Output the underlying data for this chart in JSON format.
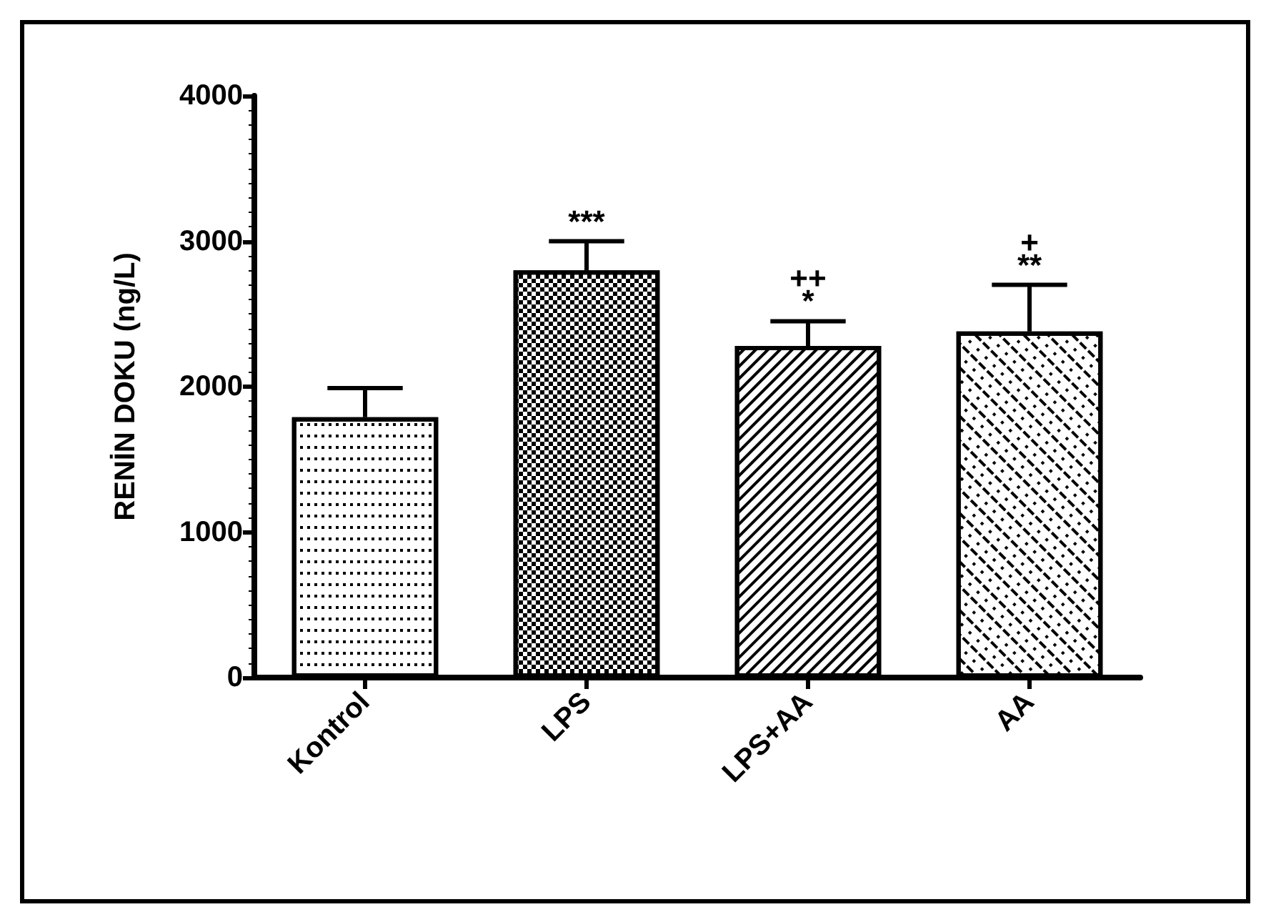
{
  "chart_data": {
    "type": "bar",
    "ylabel": "RENİN DOKU (ng/L)",
    "categories": [
      "Kontrol",
      "LPS",
      "LPS+AA",
      "AA"
    ],
    "values": [
      1790,
      2800,
      2280,
      2380
    ],
    "errors": [
      200,
      200,
      170,
      320
    ],
    "value_labels": [
      null,
      "***",
      "++\n*",
      "+\n**"
    ],
    "color": "#000000",
    "ylim": [
      0,
      4000
    ],
    "yticks": [
      0,
      1000,
      2000,
      3000,
      4000
    ],
    "grid": false
  }
}
